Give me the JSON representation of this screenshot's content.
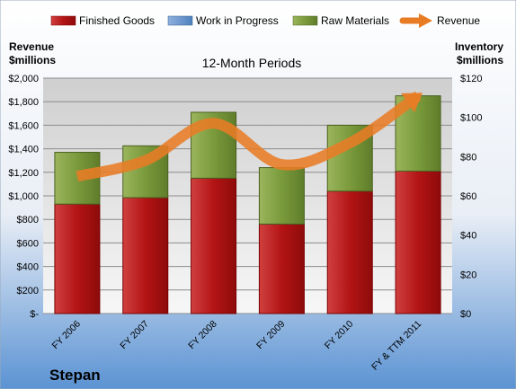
{
  "chart_data": {
    "type": "bar",
    "stacked": true,
    "title": "12-Month Periods",
    "company": "Stepan",
    "categories": [
      "FY 2006",
      "FY 2007",
      "FY 2008",
      "FY 2009",
      "FY 2010",
      "FY & TTM 2011"
    ],
    "legend_position": "top",
    "series": [
      {
        "name": "Finished Goods",
        "axis": "left",
        "color": "#c00000",
        "values": [
          930,
          985,
          1150,
          760,
          1040,
          1210
        ]
      },
      {
        "name": "Work in Progress",
        "axis": "left",
        "color": "#4f81bd",
        "values": [
          0,
          0,
          0,
          0,
          0,
          0
        ]
      },
      {
        "name": "Raw Materials",
        "axis": "left",
        "color": "#77933c",
        "values": [
          440,
          440,
          560,
          480,
          560,
          640
        ]
      },
      {
        "name": "Revenue",
        "axis": "right",
        "type": "line",
        "color": "#e87c25",
        "values": [
          70,
          78,
          97,
          76,
          87,
          111
        ]
      }
    ],
    "left_axis": {
      "label_line1": "Revenue",
      "label_line2": "$millions",
      "ylim": [
        0,
        2000
      ],
      "ticks": [
        "$-",
        "$200",
        "$400",
        "$600",
        "$800",
        "$1,000",
        "$1,200",
        "$1,400",
        "$1,600",
        "$1,800",
        "$2,000"
      ]
    },
    "right_axis": {
      "label_line1": "Inventory",
      "label_line2": "$millions",
      "ylim": [
        0,
        120
      ],
      "ticks": [
        "$0",
        "$20",
        "$40",
        "$60",
        "$80",
        "$100",
        "$120"
      ]
    },
    "grid": true
  }
}
